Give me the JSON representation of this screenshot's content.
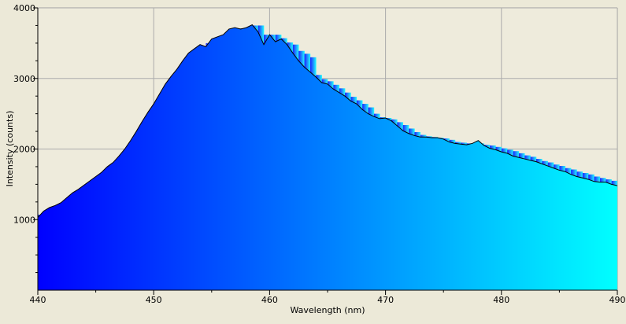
{
  "chart_data": {
    "type": "area",
    "title": "",
    "xlabel": "Wavelength (nm)",
    "ylabel": "Intensity (counts)",
    "xlim": [
      440,
      490
    ],
    "ylim": [
      0,
      4000
    ],
    "x_ticks": [
      "440",
      "450",
      "460",
      "470",
      "480",
      "490"
    ],
    "y_ticks": [
      "1000",
      "2000",
      "3000",
      "4000"
    ],
    "grid": true,
    "fill_gradient": [
      "#0000ff",
      "#00ffff"
    ],
    "line_color": "#000000",
    "bar_color_base": "#1480f0",
    "series": [
      {
        "values": [
          [
            440.0,
            1030
          ],
          [
            440.5,
            1120
          ],
          [
            441.0,
            1170
          ],
          [
            441.5,
            1200
          ],
          [
            442.0,
            1240
          ],
          [
            442.5,
            1310
          ],
          [
            443.0,
            1380
          ],
          [
            443.5,
            1430
          ],
          [
            444.0,
            1490
          ],
          [
            444.5,
            1550
          ],
          [
            445.0,
            1610
          ],
          [
            445.5,
            1670
          ],
          [
            446.0,
            1750
          ],
          [
            446.5,
            1810
          ],
          [
            447.0,
            1900
          ],
          [
            447.5,
            2000
          ],
          [
            448.0,
            2120
          ],
          [
            448.5,
            2250
          ],
          [
            449.0,
            2390
          ],
          [
            449.5,
            2520
          ],
          [
            450.0,
            2640
          ],
          [
            450.5,
            2780
          ],
          [
            451.0,
            2920
          ],
          [
            451.5,
            3030
          ],
          [
            452.0,
            3130
          ],
          [
            452.5,
            3250
          ],
          [
            453.0,
            3360
          ],
          [
            453.5,
            3420
          ],
          [
            454.0,
            3480
          ],
          [
            454.5,
            3450
          ],
          [
            455.0,
            3560
          ],
          [
            455.5,
            3590
          ],
          [
            456.0,
            3620
          ],
          [
            456.5,
            3700
          ],
          [
            457.0,
            3720
          ],
          [
            457.5,
            3700
          ],
          [
            458.0,
            3720
          ],
          [
            458.5,
            3760
          ],
          [
            459.0,
            3660
          ],
          [
            459.5,
            3480
          ],
          [
            460.0,
            3620
          ],
          [
            460.5,
            3520
          ],
          [
            461.0,
            3560
          ],
          [
            461.5,
            3480
          ],
          [
            462.0,
            3360
          ],
          [
            462.5,
            3250
          ],
          [
            463.0,
            3160
          ],
          [
            463.5,
            3090
          ],
          [
            464.0,
            3020
          ],
          [
            464.5,
            2940
          ],
          [
            465.0,
            2920
          ],
          [
            465.5,
            2850
          ],
          [
            466.0,
            2800
          ],
          [
            466.5,
            2750
          ],
          [
            467.0,
            2680
          ],
          [
            467.5,
            2640
          ],
          [
            468.0,
            2560
          ],
          [
            468.5,
            2500
          ],
          [
            469.0,
            2460
          ],
          [
            469.5,
            2430
          ],
          [
            470.0,
            2440
          ],
          [
            470.5,
            2400
          ],
          [
            471.0,
            2330
          ],
          [
            471.5,
            2260
          ],
          [
            472.0,
            2220
          ],
          [
            472.5,
            2190
          ],
          [
            473.0,
            2170
          ],
          [
            473.5,
            2170
          ],
          [
            474.0,
            2160
          ],
          [
            474.5,
            2160
          ],
          [
            475.0,
            2140
          ],
          [
            475.5,
            2100
          ],
          [
            476.0,
            2080
          ],
          [
            476.5,
            2070
          ],
          [
            477.0,
            2060
          ],
          [
            477.5,
            2080
          ],
          [
            478.0,
            2120
          ],
          [
            478.5,
            2050
          ],
          [
            479.0,
            2010
          ],
          [
            479.5,
            1990
          ],
          [
            480.0,
            1960
          ],
          [
            480.5,
            1940
          ],
          [
            481.0,
            1900
          ],
          [
            481.5,
            1880
          ],
          [
            482.0,
            1860
          ],
          [
            482.5,
            1840
          ],
          [
            483.0,
            1820
          ],
          [
            483.5,
            1790
          ],
          [
            484.0,
            1760
          ],
          [
            484.5,
            1730
          ],
          [
            485.0,
            1700
          ],
          [
            485.5,
            1680
          ],
          [
            486.0,
            1640
          ],
          [
            486.5,
            1610
          ],
          [
            487.0,
            1590
          ],
          [
            487.5,
            1570
          ],
          [
            488.0,
            1540
          ],
          [
            488.5,
            1530
          ],
          [
            489.0,
            1530
          ],
          [
            489.5,
            1500
          ],
          [
            490.0,
            1480
          ]
        ]
      }
    ],
    "bars": [
      [
        440.0,
        1070
      ],
      [
        440.5,
        1100
      ],
      [
        441.0,
        1150
      ],
      [
        441.5,
        1200
      ],
      [
        442.0,
        1230
      ],
      [
        442.5,
        1280
      ],
      [
        443.0,
        1360
      ],
      [
        443.5,
        1420
      ],
      [
        444.0,
        1480
      ],
      [
        444.5,
        1530
      ],
      [
        445.0,
        1600
      ],
      [
        445.5,
        1660
      ],
      [
        446.0,
        1720
      ],
      [
        446.5,
        1790
      ],
      [
        447.0,
        1870
      ],
      [
        447.5,
        1960
      ],
      [
        448.0,
        2090
      ],
      [
        448.5,
        2230
      ],
      [
        449.0,
        2360
      ],
      [
        449.5,
        2480
      ],
      [
        450.0,
        2600
      ],
      [
        450.5,
        2760
      ],
      [
        451.0,
        2900
      ],
      [
        451.5,
        3020
      ],
      [
        452.0,
        3110
      ],
      [
        452.5,
        3220
      ],
      [
        453.0,
        3340
      ],
      [
        453.5,
        3400
      ],
      [
        454.0,
        3450
      ],
      [
        454.5,
        3500
      ],
      [
        455.0,
        3540
      ],
      [
        455.5,
        3580
      ],
      [
        456.0,
        3600
      ],
      [
        456.5,
        3680
      ],
      [
        457.0,
        3710
      ],
      [
        457.5,
        3710
      ],
      [
        458.0,
        3720
      ],
      [
        458.5,
        3750
      ],
      [
        459.0,
        3750
      ],
      [
        459.5,
        3620
      ],
      [
        460.0,
        3620
      ],
      [
        460.5,
        3620
      ],
      [
        461.0,
        3570
      ],
      [
        461.5,
        3510
      ],
      [
        462.0,
        3480
      ],
      [
        462.5,
        3390
      ],
      [
        463.0,
        3350
      ],
      [
        463.5,
        3300
      ],
      [
        464.0,
        3050
      ],
      [
        464.5,
        2990
      ],
      [
        465.0,
        2960
      ],
      [
        465.5,
        2910
      ],
      [
        466.0,
        2860
      ],
      [
        466.5,
        2800
      ],
      [
        467.0,
        2740
      ],
      [
        467.5,
        2690
      ],
      [
        468.0,
        2640
      ],
      [
        468.5,
        2590
      ],
      [
        469.0,
        2500
      ],
      [
        469.5,
        2450
      ],
      [
        470.0,
        2440
      ],
      [
        470.5,
        2420
      ],
      [
        471.0,
        2380
      ],
      [
        471.5,
        2340
      ],
      [
        472.0,
        2290
      ],
      [
        472.5,
        2240
      ],
      [
        473.0,
        2200
      ],
      [
        473.5,
        2180
      ],
      [
        474.0,
        2170
      ],
      [
        474.5,
        2160
      ],
      [
        475.0,
        2150
      ],
      [
        475.5,
        2130
      ],
      [
        476.0,
        2100
      ],
      [
        476.5,
        2090
      ],
      [
        477.0,
        2080
      ],
      [
        477.5,
        2080
      ],
      [
        478.0,
        2080
      ],
      [
        478.5,
        2060
      ],
      [
        479.0,
        2050
      ],
      [
        479.5,
        2030
      ],
      [
        480.0,
        2010
      ],
      [
        480.5,
        1990
      ],
      [
        481.0,
        1970
      ],
      [
        481.5,
        1940
      ],
      [
        482.0,
        1910
      ],
      [
        482.5,
        1890
      ],
      [
        483.0,
        1860
      ],
      [
        483.5,
        1830
      ],
      [
        484.0,
        1810
      ],
      [
        484.5,
        1780
      ],
      [
        485.0,
        1760
      ],
      [
        485.5,
        1730
      ],
      [
        486.0,
        1710
      ],
      [
        486.5,
        1680
      ],
      [
        487.0,
        1660
      ],
      [
        487.5,
        1640
      ],
      [
        488.0,
        1610
      ],
      [
        488.5,
        1590
      ],
      [
        489.0,
        1570
      ],
      [
        489.5,
        1550
      ]
    ]
  }
}
